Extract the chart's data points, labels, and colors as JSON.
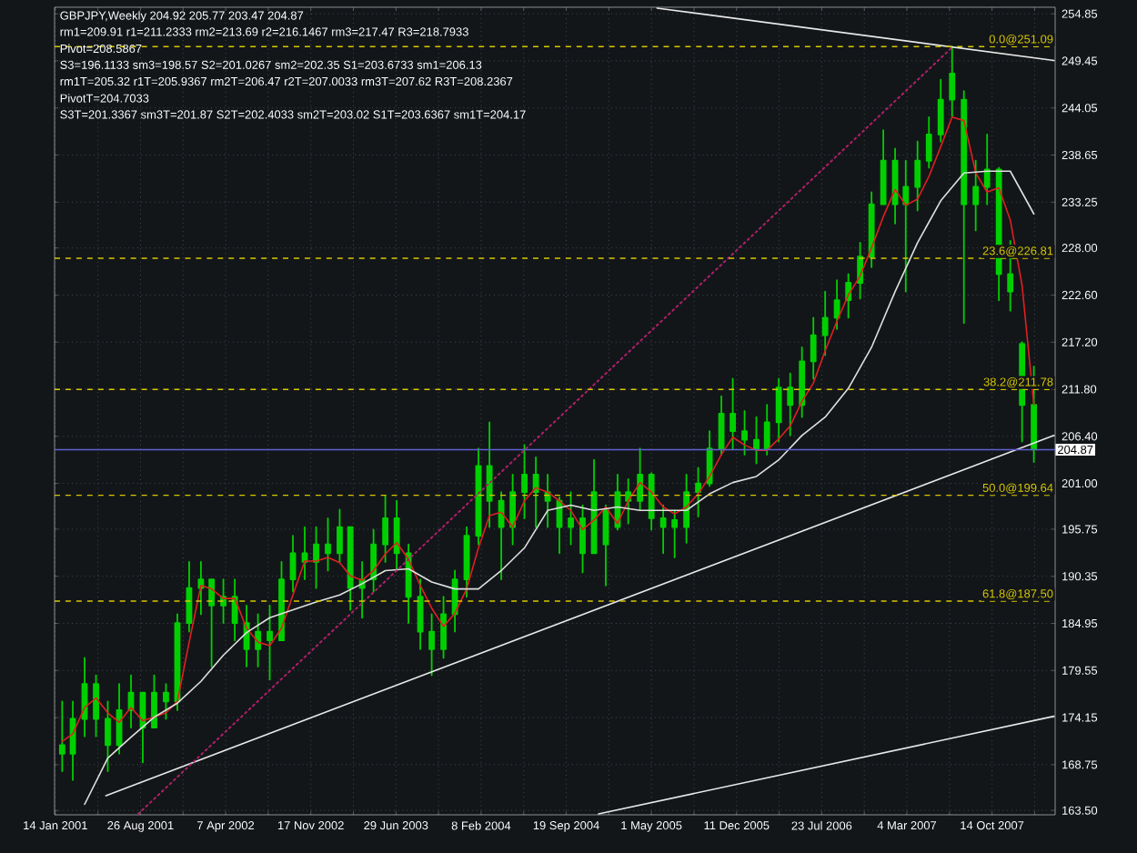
{
  "chart_data": {
    "type": "candlestick",
    "title": "GBPJPY,Weekly 204.92 205.77 203.47 204.87",
    "annotations": [
      "rm1=209.91 r1=211.2333 rm2=213.69 r2=216.1467 rm3=217.47 R3=218.7933",
      "Pivot=208.5867",
      "S3=196.1133 sm3=198.57 S2=201.0267 sm2=202.35 S1=203.6733 sm1=206.13",
      "rm1T=205.32 r1T=205.9367 rm2T=206.47 r2T=207.0033 rm3T=207.62 R3T=208.2367",
      "PivotT=204.7033",
      "S3T=201.3367 sm3T=201.87 S2T=202.4033 sm2T=203.02 S1T=203.6367 sm1T=204.17"
    ],
    "color": "#00d000",
    "x": [
      "2001-02",
      "2001-03",
      "2001-04",
      "2001-05",
      "2001-06",
      "2001-07",
      "2001-08",
      "2001-09",
      "2001-10",
      "2001-11",
      "2001-12",
      "2002-01",
      "2002-02",
      "2002-03",
      "2002-04",
      "2002-05",
      "2002-06",
      "2002-07",
      "2002-08",
      "2002-09",
      "2002-10",
      "2002-11",
      "2002-12",
      "2003-01",
      "2003-02",
      "2003-03",
      "2003-04",
      "2003-05",
      "2003-06",
      "2003-07",
      "2003-08",
      "2003-09",
      "2003-10",
      "2003-11",
      "2003-12",
      "2004-01",
      "2004-02",
      "2004-03",
      "2004-04",
      "2004-05",
      "2004-06",
      "2004-07",
      "2004-08",
      "2004-09",
      "2004-10",
      "2004-11",
      "2004-12",
      "2005-01",
      "2005-02",
      "2005-03",
      "2005-04",
      "2005-05",
      "2005-06",
      "2005-07",
      "2005-08",
      "2005-09",
      "2005-10",
      "2005-11",
      "2005-12",
      "2006-01",
      "2006-02",
      "2006-03",
      "2006-04",
      "2006-05",
      "2006-06",
      "2006-07",
      "2006-08",
      "2006-09",
      "2006-10",
      "2006-11",
      "2006-12",
      "2007-01",
      "2007-02",
      "2007-03",
      "2007-04",
      "2007-05",
      "2007-06",
      "2007-07",
      "2007-08",
      "2007-09",
      "2007-10",
      "2007-11",
      "2007-12",
      "2008-01",
      "2008-02"
    ],
    "ohlc": [
      [
        171,
        176,
        168,
        170
      ],
      [
        170,
        176,
        167,
        174
      ],
      [
        174,
        181,
        172,
        178
      ],
      [
        178,
        179,
        172,
        174
      ],
      [
        174,
        176,
        168,
        171
      ],
      [
        171,
        178,
        170,
        175
      ],
      [
        175,
        179,
        173,
        177
      ],
      [
        177,
        177,
        169,
        173
      ],
      [
        173,
        179,
        173,
        177
      ],
      [
        177,
        178,
        174,
        176
      ],
      [
        176,
        186,
        175,
        185
      ],
      [
        185,
        192,
        184,
        189
      ],
      [
        189,
        192,
        186,
        190
      ],
      [
        190,
        190,
        180,
        187
      ],
      [
        187,
        190,
        185,
        188
      ],
      [
        188,
        190,
        183,
        185
      ],
      [
        185,
        187,
        180,
        182
      ],
      [
        182,
        186,
        180,
        184
      ],
      [
        184,
        187,
        178.5,
        183
      ],
      [
        183,
        192,
        183,
        190
      ],
      [
        190,
        195,
        188.6,
        193
      ],
      [
        193,
        196,
        190,
        192
      ],
      [
        192,
        196,
        189,
        194
      ],
      [
        194,
        197,
        191,
        193
      ],
      [
        193,
        198,
        192,
        196
      ],
      [
        196,
        196,
        186.5,
        189
      ],
      [
        189,
        192,
        185.6,
        190
      ],
      [
        190,
        195.7,
        188.6,
        194
      ],
      [
        194,
        199.6,
        192,
        197
      ],
      [
        197,
        199,
        191,
        193
      ],
      [
        193,
        194,
        185,
        188
      ],
      [
        188,
        190,
        182,
        184
      ],
      [
        184,
        186,
        179,
        182
      ],
      [
        182,
        188,
        181,
        186
      ],
      [
        186,
        191,
        184,
        190
      ],
      [
        190,
        196,
        188,
        195
      ],
      [
        195,
        205,
        194,
        203
      ],
      [
        203,
        208,
        196,
        199
      ],
      [
        199,
        200,
        190,
        196
      ],
      [
        196,
        202,
        194,
        200
      ],
      [
        200,
        205.4,
        197,
        202
      ],
      [
        202,
        204,
        196,
        200
      ],
      [
        200,
        202,
        196,
        199
      ],
      [
        199,
        199.4,
        193,
        196
      ],
      [
        196,
        200,
        194,
        197
      ],
      [
        197,
        198.5,
        190.8,
        193
      ],
      [
        193,
        203.7,
        193,
        200
      ],
      [
        198,
        198.5,
        189.3,
        194
      ],
      [
        196,
        202,
        195.7,
        200
      ],
      [
        200,
        201.5,
        196.4,
        199
      ],
      [
        199,
        205,
        198,
        202
      ],
      [
        202,
        202.2,
        195.7,
        197
      ],
      [
        197,
        198.5,
        193,
        196
      ],
      [
        196,
        197.9,
        192.5,
        196.8
      ],
      [
        196,
        202,
        194.2,
        200
      ],
      [
        200,
        202.8,
        197.2,
        201
      ],
      [
        201,
        207,
        200.7,
        205
      ],
      [
        205,
        211,
        204.3,
        209
      ],
      [
        209,
        213,
        205,
        207
      ],
      [
        207,
        209.3,
        204.3,
        206
      ],
      [
        206,
        208.6,
        203.3,
        205
      ],
      [
        205,
        210,
        204.3,
        208
      ],
      [
        208,
        213,
        205.8,
        212
      ],
      [
        212,
        213.6,
        206.5,
        210
      ],
      [
        210,
        216.6,
        208.6,
        215
      ],
      [
        215,
        220,
        213,
        218
      ],
      [
        218,
        223,
        215.7,
        220
      ],
      [
        220,
        224.3,
        218.7,
        222
      ],
      [
        222,
        225,
        220,
        224
      ],
      [
        224,
        228.6,
        222.2,
        227
      ],
      [
        227,
        234.4,
        225.8,
        233
      ],
      [
        233,
        241.5,
        233,
        238
      ],
      [
        238,
        239.4,
        230.8,
        233
      ],
      [
        233,
        238,
        223,
        235
      ],
      [
        235,
        240.2,
        232.3,
        238
      ],
      [
        238,
        243,
        237.2,
        241
      ],
      [
        241,
        247.3,
        240.2,
        245
      ],
      [
        245,
        251.09,
        243,
        248
      ],
      [
        245,
        246,
        219.4,
        233
      ],
      [
        233,
        238,
        230,
        235
      ],
      [
        235,
        241,
        233,
        237
      ],
      [
        237,
        237.2,
        222,
        225
      ],
      [
        225,
        228.8,
        220.8,
        223
      ],
      [
        217,
        217.2,
        205.8,
        210
      ],
      [
        210,
        214.4,
        203.47,
        204.87
      ]
    ],
    "series": [
      {
        "type": "line",
        "color": "#e02020",
        "values": [
          171.4,
          172.3,
          175.3,
          176.4,
          174.7,
          173.6,
          175.3,
          173.8,
          174.2,
          174.7,
          176,
          182.8,
          189.3,
          188.9,
          187.8,
          187.8,
          184.4,
          182.8,
          182.4,
          184.4,
          188.2,
          192.1,
          192.1,
          192.5,
          191.9,
          190.4,
          189.9,
          191,
          192.9,
          194.2,
          192.3,
          189.3,
          186.7,
          184.6,
          186.1,
          188.9,
          193.6,
          197.3,
          197.7,
          196,
          199,
          200.5,
          200,
          199,
          197.9,
          195.7,
          196.8,
          198.3,
          196.4,
          199,
          201.1,
          200,
          198.3,
          197.5,
          198.3,
          199.8,
          201.8,
          204.3,
          206.3,
          205.4,
          204.8,
          204.8,
          206.1,
          207.6,
          210.4,
          212.5,
          216.2,
          219.6,
          222.6,
          224.8,
          228,
          231.6,
          234.7,
          232.9,
          233.6,
          236.2,
          239.6,
          243,
          242.6,
          236.6,
          234.4,
          234.9,
          231.2,
          223.7,
          210
        ]
      },
      {
        "type": "line",
        "color": "#e0e0e0",
        "x": [
          "2001-04",
          "2001-06",
          "2001-08",
          "2001-10",
          "2001-12",
          "2002-02",
          "2002-04",
          "2002-06",
          "2002-08",
          "2002-10",
          "2002-12",
          "2003-02",
          "2003-04",
          "2003-06",
          "2003-08",
          "2003-10",
          "2003-12",
          "2004-02",
          "2004-04",
          "2004-06",
          "2004-08",
          "2004-10",
          "2004-12",
          "2005-02",
          "2005-04",
          "2005-06",
          "2005-08",
          "2005-10",
          "2005-12",
          "2006-02",
          "2006-04",
          "2006-06",
          "2006-08",
          "2006-10",
          "2006-12",
          "2007-02",
          "2007-04",
          "2007-06",
          "2007-08",
          "2007-10",
          "2007-12",
          "2008-02"
        ],
        "values": [
          164.2,
          169.5,
          171.9,
          174.2,
          175.8,
          178.3,
          181.3,
          183.9,
          185.6,
          186.5,
          187.4,
          188.2,
          189.5,
          191,
          191.2,
          189.7,
          188.9,
          188.9,
          191,
          193.6,
          197.9,
          198.5,
          197.9,
          198.3,
          197.9,
          197.9,
          197.9,
          199.8,
          201.1,
          201.8,
          203.7,
          206.5,
          208.6,
          211.9,
          216.6,
          223,
          228.6,
          233.4,
          236.6,
          236.8,
          236.8,
          231.9
        ]
      },
      {
        "type": "line",
        "color": "#e8e8e8",
        "x": [
          "2001-05-27",
          "2008-03-25"
        ],
        "values": [
          165.2,
          206.5
        ]
      },
      {
        "type": "line",
        "color": "#e8e8e8",
        "x": [
          "2004-12-13",
          "2008-03-25"
        ],
        "values": [
          163.1,
          174.3
        ]
      },
      {
        "type": "line",
        "color": "#e8e8e8",
        "x": [
          "2005-05-16",
          "2008-03-25"
        ],
        "values": [
          255.5,
          249.5
        ]
      },
      {
        "type": "line",
        "color": "#b0206a",
        "line_style": "dotted",
        "x": [
          "2001-08-20",
          "2007-07-01"
        ],
        "values": [
          163.1,
          251.0
        ]
      }
    ],
    "ref_lines": [
      {
        "axis": "y",
        "value": 251.09,
        "label": "0.0@251.09",
        "color": "#d8c800",
        "line_style": "dashed"
      },
      {
        "axis": "y",
        "value": 226.81,
        "label": "23.6@226.81",
        "color": "#d8c800",
        "line_style": "dashed"
      },
      {
        "axis": "y",
        "value": 211.78,
        "label": "38.2@211.78",
        "color": "#d8c800",
        "line_style": "dashed"
      },
      {
        "axis": "y",
        "value": 199.64,
        "label": "50.0@199.64",
        "color": "#d8c800",
        "line_style": "dashed"
      },
      {
        "axis": "y",
        "value": 187.5,
        "label": "61.8@187.50",
        "color": "#d8c800",
        "line_style": "dashed"
      },
      {
        "axis": "y",
        "value": 204.87,
        "label": "204.87",
        "color": "#6060d0",
        "line_style": "solid"
      }
    ],
    "xlim": [
      "2001-01-12",
      "2008-03-28"
    ],
    "ylim": [
      163.0,
      255.6
    ],
    "xticks": [
      {
        "value": "2001-01-14",
        "label": "14 Jan 2001"
      },
      {
        "value": "2001-05-06",
        "label": null
      },
      {
        "value": "2001-08-26",
        "label": "26 Aug 2001"
      },
      {
        "value": "2001-12-16",
        "label": null
      },
      {
        "value": "2002-04-07",
        "label": "7 Apr 2002"
      },
      {
        "value": "2002-07-28",
        "label": null
      },
      {
        "value": "2002-11-17",
        "label": "17 Nov 2002"
      },
      {
        "value": "2003-03-09",
        "label": null
      },
      {
        "value": "2003-06-29",
        "label": "29 Jun 2003"
      },
      {
        "value": "2003-10-19",
        "label": null
      },
      {
        "value": "2004-02-08",
        "label": "8 Feb 2004"
      },
      {
        "value": "2004-05-30",
        "label": null
      },
      {
        "value": "2004-09-19",
        "label": "19 Sep 2004"
      },
      {
        "value": "2005-01-09",
        "label": null
      },
      {
        "value": "2005-05-01",
        "label": "1 May 2005"
      },
      {
        "value": "2005-08-21",
        "label": null
      },
      {
        "value": "2005-12-11",
        "label": "11 Dec 2005"
      },
      {
        "value": "2006-04-02",
        "label": null
      },
      {
        "value": "2006-07-23",
        "label": "23 Jul 2006"
      },
      {
        "value": "2006-11-12",
        "label": null
      },
      {
        "value": "2007-03-04",
        "label": "4 Mar 2007"
      },
      {
        "value": "2007-06-24",
        "label": null
      },
      {
        "value": "2007-10-14",
        "label": "14 Oct 2007"
      },
      {
        "value": "2008-02-03",
        "label": null
      }
    ],
    "yticks": [
      {
        "value": 163.5,
        "label": "163.50"
      },
      {
        "value": 168.75,
        "label": "168.75"
      },
      {
        "value": 174.15,
        "label": "174.15"
      },
      {
        "value": 179.55,
        "label": "179.55"
      },
      {
        "value": 184.95,
        "label": "184.95"
      },
      {
        "value": 190.35,
        "label": "190.35"
      },
      {
        "value": 195.75,
        "label": "195.75"
      },
      {
        "value": 201.0,
        "label": "201.00"
      },
      {
        "value": 206.4,
        "label": "206.40"
      },
      {
        "value": 211.8,
        "label": "211.80"
      },
      {
        "value": 217.2,
        "label": "217.20"
      },
      {
        "value": 222.6,
        "label": "222.60"
      },
      {
        "value": 228.0,
        "label": "228.00"
      },
      {
        "value": 233.25,
        "label": "233.25"
      },
      {
        "value": 238.65,
        "label": "238.65"
      },
      {
        "value": 244.05,
        "label": "244.05"
      },
      {
        "value": 249.45,
        "label": "249.45"
      },
      {
        "value": 254.85,
        "label": "254.85"
      }
    ],
    "grid": true
  }
}
